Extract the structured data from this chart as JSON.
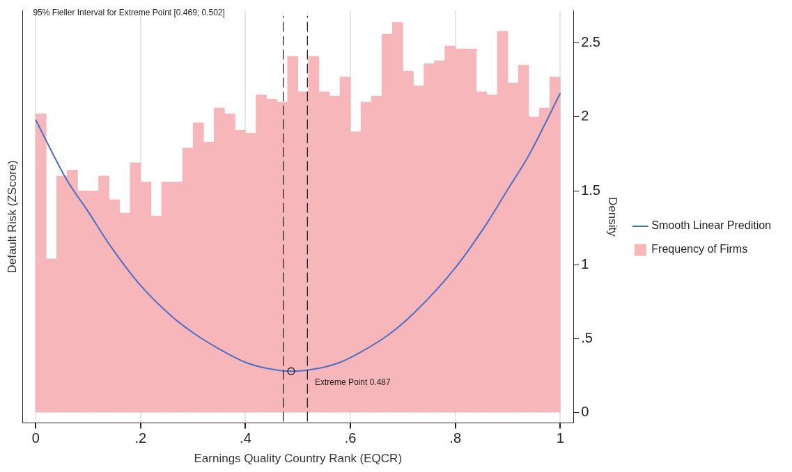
{
  "chart_data": {
    "type": "histogram",
    "xlabel": "Earnings Quality Country Rank (EQCR)",
    "ylabel": "Default Risk (ZScore)",
    "y2label": "Density",
    "annotations": [
      "95% Fieller Interval for Extreme Point [0.469; 0.502]",
      "Extreme Point 0.487"
    ],
    "xlim": [
      -0.025,
      1.025
    ],
    "xticks": [
      0,
      {
        "value": 0.2,
        "label": ".2"
      },
      {
        "value": 0.4,
        "label": ".4"
      },
      {
        "value": 0.6,
        "label": ".6"
      },
      {
        "value": 0.8,
        "label": ".8"
      },
      1
    ],
    "y2lim": [
      -0.07,
      2.72
    ],
    "y2ticks": [
      0,
      {
        "value": 0.5,
        "label": ".5"
      },
      1,
      1.5,
      2,
      2.5
    ],
    "grid": "x",
    "legend": "right",
    "series": [
      {
        "name": "Smooth Linear Predition",
        "type": "line",
        "axis": "y2",
        "color": "#4a6fc7",
        "marker": "none",
        "x": [
          0,
          0.06,
          0.1,
          0.14,
          0.2,
          0.26,
          0.3,
          0.35,
          0.4,
          0.44,
          0.487,
          0.54,
          0.58,
          0.62,
          0.67,
          0.72,
          0.8,
          0.86,
          0.9,
          0.94,
          1
        ],
        "values": [
          1.98,
          1.57,
          1.36,
          1.14,
          0.86,
          0.65,
          0.54,
          0.43,
          0.34,
          0.3,
          0.28,
          0.3,
          0.34,
          0.41,
          0.52,
          0.67,
          0.98,
          1.28,
          1.51,
          1.74,
          2.16
        ]
      },
      {
        "name": "Frequency of Firms",
        "type": "histogram",
        "axis": "y2",
        "color": "#f7b6b9",
        "bins": [
          0,
          0.02,
          0.04,
          0.06,
          0.08,
          0.1,
          0.12,
          0.14,
          0.16,
          0.18,
          0.2,
          0.22,
          0.24,
          0.26,
          0.28,
          0.3,
          0.32,
          0.34,
          0.36,
          0.38,
          0.4,
          0.42,
          0.44,
          0.46,
          0.48,
          0.5,
          0.52,
          0.54,
          0.56,
          0.58,
          0.6,
          0.62,
          0.64,
          0.66,
          0.68,
          0.7,
          0.72,
          0.74,
          0.76,
          0.78,
          0.8,
          0.82,
          0.84,
          0.86,
          0.88,
          0.9,
          0.92,
          0.94,
          0.96,
          0.98,
          1
        ],
        "values": [
          2.02,
          1.04,
          1.6,
          1.64,
          1.5,
          1.5,
          1.6,
          1.44,
          1.35,
          1.69,
          1.56,
          1.33,
          1.56,
          1.56,
          1.79,
          1.96,
          1.83,
          2.06,
          2.02,
          1.91,
          1.89,
          2.15,
          2.12,
          2.1,
          2.41,
          2.17,
          2.41,
          2.17,
          2.14,
          2.27,
          1.9,
          2.1,
          2.14,
          2.56,
          2.64,
          2.31,
          2.21,
          2.36,
          2.38,
          2.48,
          2.46,
          2.46,
          2.17,
          2.15,
          2.58,
          2.23,
          2.35,
          2,
          2.06,
          2.27
        ]
      },
      {
        "type": "scatter",
        "axis": "y2",
        "color": "#222222",
        "marker": "circle",
        "x": [
          0.487
        ],
        "values": [
          0.28
        ]
      }
    ],
    "ref_lines": [
      {
        "axis": "x",
        "value": 0.472,
        "color": "#222222",
        "line_style": "dashed"
      },
      {
        "axis": "x",
        "value": 0.518,
        "color": "#222222",
        "line_style": "dashed"
      }
    ]
  }
}
